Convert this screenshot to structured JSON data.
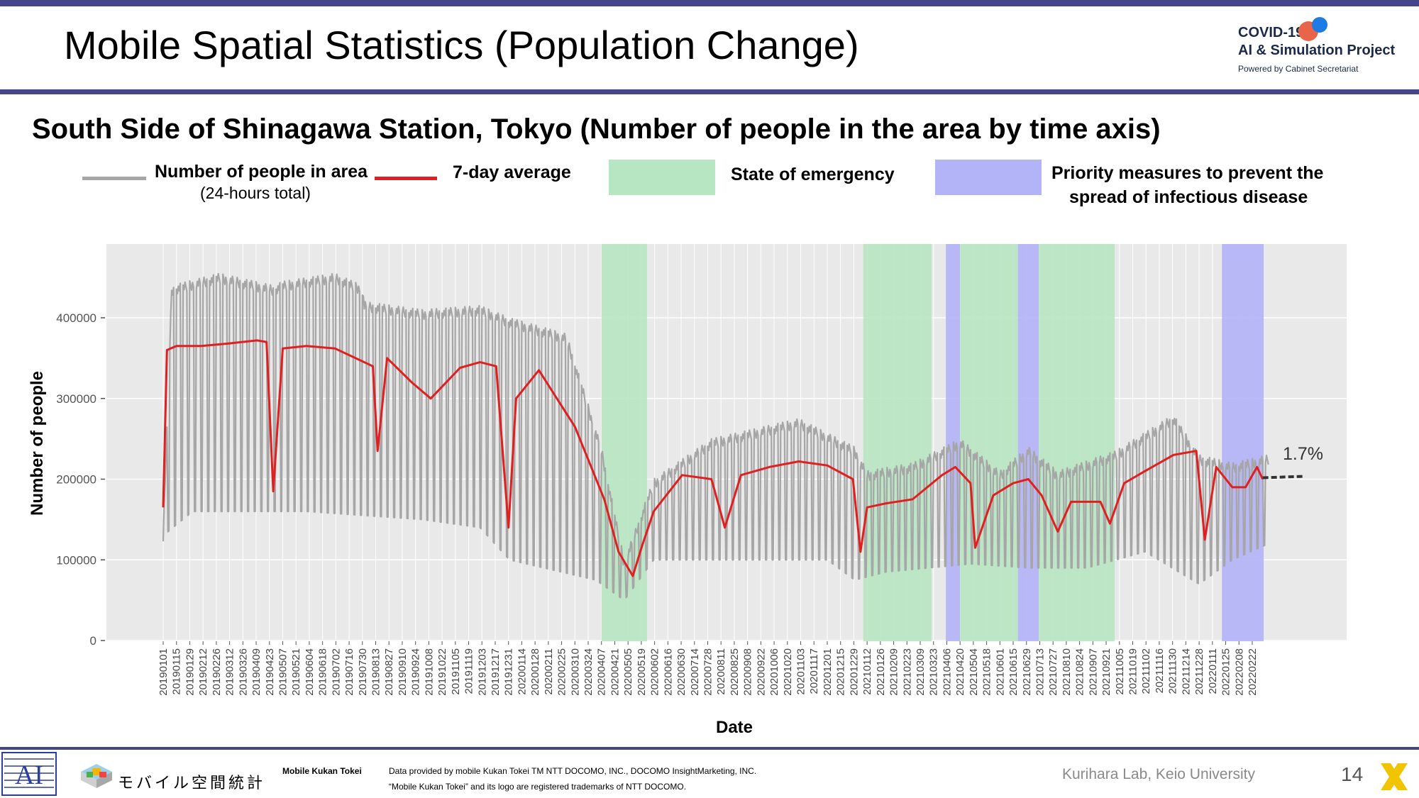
{
  "header": {
    "title": "Mobile Spatial Statistics (Population Change)",
    "logo_line1": "COVID-19",
    "logo_line2": "AI & Simulation Project",
    "logo_line3": "Powered by Cabinet Secretariat"
  },
  "colors": {
    "bar": "#45458a",
    "raw": "#a6a6a6",
    "avg": "#e02020",
    "emergency": "#b7e6c2",
    "priority": "#b3b3f7",
    "panel": "#e9e9e9"
  },
  "legend": {
    "raw_label": "Number of people in area",
    "raw_sub": "(24-hours total)",
    "avg_label": "7-day average",
    "emergency_label": "State of emergency",
    "priority_line1": "Priority measures to prevent the",
    "priority_line2": "spread of infectious disease"
  },
  "chart_data": {
    "type": "line",
    "title": "South Side of Shinagawa Station, Tokyo (Number of people in the area by time axis)",
    "xlabel": "Date",
    "ylabel": "Number of people",
    "ylim": [
      0,
      450000
    ],
    "yticks": [
      0,
      100000,
      200000,
      300000,
      400000
    ],
    "ytick_labels": [
      "0",
      "100000",
      "200000",
      "300000",
      "400000"
    ],
    "x_range": [
      "20190101",
      "20220311"
    ],
    "xtick_labels": [
      "20190101",
      "20190115",
      "20190129",
      "20190212",
      "20190226",
      "20190312",
      "20190326",
      "20190409",
      "20190423",
      "20190507",
      "20190521",
      "20190604",
      "20190618",
      "20190702",
      "20190716",
      "20190730",
      "20190813",
      "20190827",
      "20190910",
      "20190924",
      "20191008",
      "20191022",
      "20191105",
      "20191119",
      "20191203",
      "20191217",
      "20191231",
      "20200114",
      "20200128",
      "20200211",
      "20200225",
      "20200310",
      "20200324",
      "20200407",
      "20200421",
      "20200505",
      "20200519",
      "20200602",
      "20200616",
      "20200630",
      "20200714",
      "20200728",
      "20200811",
      "20200825",
      "20200908",
      "20200922",
      "20201006",
      "20201020",
      "20201103",
      "20201117",
      "20201201",
      "20201215",
      "20201229",
      "20210112",
      "20210126",
      "20210209",
      "20210223",
      "20210309",
      "20210323",
      "20210406",
      "20210420",
      "20210504",
      "20210518",
      "20210601",
      "20210615",
      "20210629",
      "20210713",
      "20210727",
      "20210810",
      "20210824",
      "20210907",
      "20210921",
      "20211005",
      "20211019",
      "20211102",
      "20211116",
      "20211130",
      "20211214",
      "20211228",
      "20220111",
      "20220125",
      "20220208",
      "20220222"
    ],
    "series": [
      {
        "name": "7-day average",
        "color": "#e02020",
        "points": [
          [
            "20190101",
            165000
          ],
          [
            "20190105",
            360000
          ],
          [
            "20190115",
            365000
          ],
          [
            "20190210",
            365000
          ],
          [
            "20190310",
            368000
          ],
          [
            "20190410",
            372000
          ],
          [
            "20190420",
            370000
          ],
          [
            "20190427",
            185000
          ],
          [
            "20190507",
            362000
          ],
          [
            "20190601",
            365000
          ],
          [
            "20190701",
            362000
          ],
          [
            "20190810",
            340000
          ],
          [
            "20190815",
            235000
          ],
          [
            "20190825",
            350000
          ],
          [
            "20190920",
            320000
          ],
          [
            "20191010",
            300000
          ],
          [
            "20191110",
            338000
          ],
          [
            "20191201",
            345000
          ],
          [
            "20191218",
            340000
          ],
          [
            "20191231",
            140000
          ],
          [
            "20200108",
            300000
          ],
          [
            "20200201",
            335000
          ],
          [
            "20200220",
            300000
          ],
          [
            "20200310",
            265000
          ],
          [
            "20200410",
            175000
          ],
          [
            "20200425",
            110000
          ],
          [
            "20200510",
            80000
          ],
          [
            "20200520",
            118000
          ],
          [
            "20200601",
            160000
          ],
          [
            "20200701",
            205000
          ],
          [
            "20200801",
            200000
          ],
          [
            "20200815",
            140000
          ],
          [
            "20200901",
            205000
          ],
          [
            "20201001",
            215000
          ],
          [
            "20201101",
            222000
          ],
          [
            "20201201",
            217000
          ],
          [
            "20201228",
            200000
          ],
          [
            "20210105",
            110000
          ],
          [
            "20210112",
            165000
          ],
          [
            "20210201",
            170000
          ],
          [
            "20210301",
            175000
          ],
          [
            "20210401",
            205000
          ],
          [
            "20210415",
            215000
          ],
          [
            "20210501",
            195000
          ],
          [
            "20210506",
            115000
          ],
          [
            "20210525",
            180000
          ],
          [
            "20210615",
            195000
          ],
          [
            "20210701",
            200000
          ],
          [
            "20210715",
            180000
          ],
          [
            "20210801",
            135000
          ],
          [
            "20210815",
            172000
          ],
          [
            "20210915",
            172000
          ],
          [
            "20210925",
            145000
          ],
          [
            "20211010",
            195000
          ],
          [
            "20211101",
            210000
          ],
          [
            "20211201",
            230000
          ],
          [
            "20211225",
            235000
          ],
          [
            "20220103",
            125000
          ],
          [
            "20220115",
            215000
          ],
          [
            "20220201",
            190000
          ],
          [
            "20220215",
            190000
          ],
          [
            "20220227",
            215000
          ],
          [
            "20220305",
            200000
          ]
        ]
      },
      {
        "name": "Number of people in area",
        "color": "#a6a6a6",
        "envelope_high": [
          [
            "20190101",
            135000
          ],
          [
            "20190110",
            440000
          ],
          [
            "20190301",
            455000
          ],
          [
            "20190427",
            440000
          ],
          [
            "20190507",
            445000
          ],
          [
            "20190701",
            455000
          ],
          [
            "20190730",
            440000
          ],
          [
            "20190801",
            420000
          ],
          [
            "20191001",
            410000
          ],
          [
            "20191201",
            415000
          ],
          [
            "20200101",
            400000
          ],
          [
            "20200301",
            380000
          ],
          [
            "20200407",
            240000
          ],
          [
            "20200501",
            100000
          ],
          [
            "20200601",
            200000
          ],
          [
            "20200801",
            250000
          ],
          [
            "20201101",
            275000
          ],
          [
            "20201230",
            240000
          ],
          [
            "20210112",
            210000
          ],
          [
            "20210301",
            220000
          ],
          [
            "20210420",
            250000
          ],
          [
            "20210601",
            210000
          ],
          [
            "20210701",
            240000
          ],
          [
            "20210801",
            210000
          ],
          [
            "20211001",
            235000
          ],
          [
            "20211201",
            280000
          ],
          [
            "20211228",
            230000
          ],
          [
            "20220201",
            220000
          ],
          [
            "20220311",
            230000
          ]
        ],
        "envelope_low": [
          [
            "20190101",
            130000
          ],
          [
            "20190201",
            160000
          ],
          [
            "20190601",
            160000
          ],
          [
            "20191001",
            150000
          ],
          [
            "20191201",
            140000
          ],
          [
            "20200101",
            100000
          ],
          [
            "20200401",
            75000
          ],
          [
            "20200501",
            50000
          ],
          [
            "20200601",
            100000
          ],
          [
            "20200901",
            100000
          ],
          [
            "20201201",
            100000
          ],
          [
            "20201230",
            75000
          ],
          [
            "20210201",
            85000
          ],
          [
            "20210501",
            95000
          ],
          [
            "20210701",
            90000
          ],
          [
            "20210901",
            90000
          ],
          [
            "20211101",
            110000
          ],
          [
            "20211228",
            70000
          ],
          [
            "20220201",
            100000
          ],
          [
            "20220311",
            120000
          ]
        ]
      }
    ],
    "bands": [
      {
        "type": "State of emergency",
        "start": "20200407",
        "end": "20200525"
      },
      {
        "type": "State of emergency",
        "start": "20210108",
        "end": "20210321"
      },
      {
        "type": "Priority measures to prevent the spread of infectious disease",
        "start": "20210405",
        "end": "20210420"
      },
      {
        "type": "State of emergency",
        "start": "20210420",
        "end": "20210620"
      },
      {
        "type": "Priority measures to prevent the spread of infectious disease",
        "start": "20210620",
        "end": "20210712"
      },
      {
        "type": "State of emergency",
        "start": "20210712",
        "end": "20210930"
      },
      {
        "type": "Priority measures to prevent the spread of infectious disease",
        "start": "20220121",
        "end": "20220306"
      }
    ],
    "annotations": [
      {
        "text": "1.7%"
      }
    ]
  },
  "footer": {
    "kukan_jp": "モバイル空間統計",
    "kukan_en": "Mobile Kukan Tokei",
    "credit1": "Data provided by mobile Kukan Tokei TM NTT DOCOMO, INC., DOCOMO InsightMarketing, INC.",
    "credit2": "“Mobile Kukan Tokei” and its logo are registered trademarks of NTT DOCOMO.",
    "lab": "Kurihara Lab, Keio University",
    "page": "14"
  }
}
